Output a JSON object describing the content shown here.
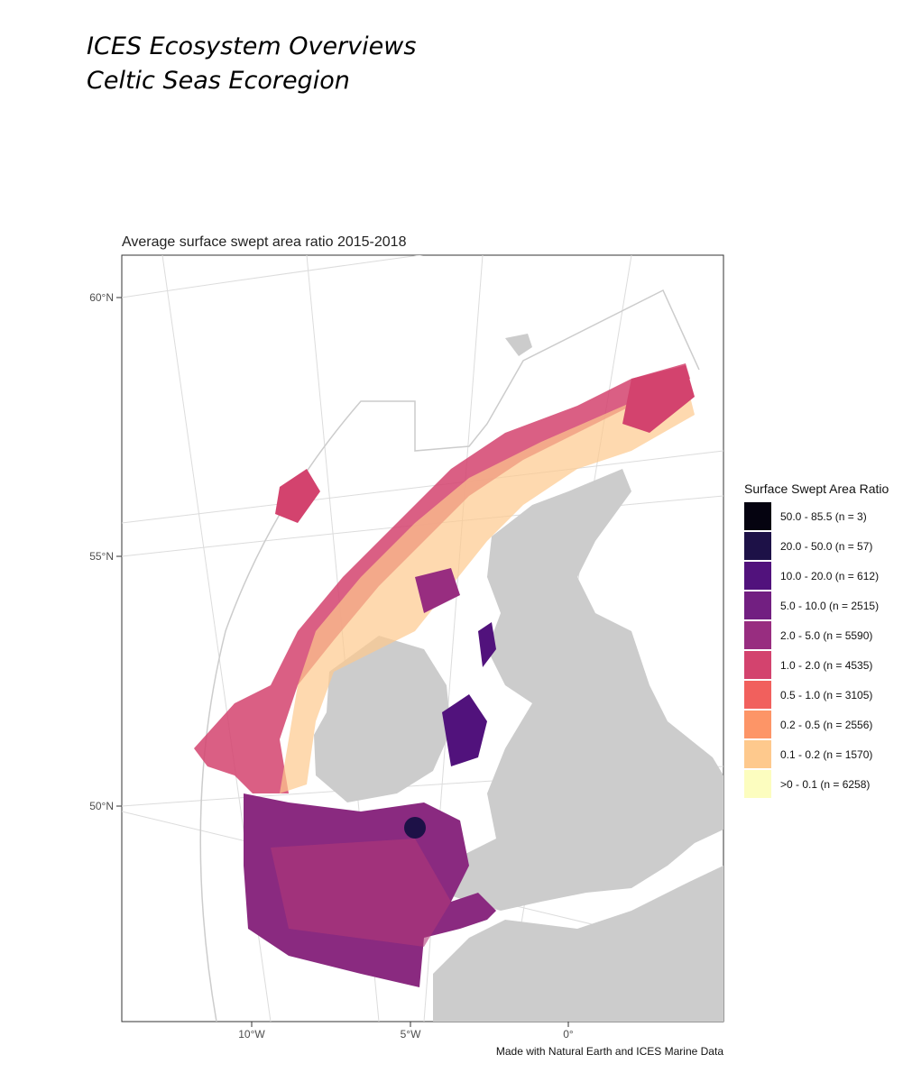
{
  "header": {
    "line1": "ICES Ecosystem Overviews",
    "line2": "Celtic Seas Ecoregion"
  },
  "map": {
    "title": "Average surface swept area ratio 2015-2018",
    "lat_labels": [
      "60°N",
      "55°N",
      "50°N"
    ],
    "lon_labels": [
      "10°W",
      "5°W",
      "0°"
    ],
    "credit": "Made with Natural Earth and ICES Marine Data"
  },
  "legend": {
    "title": "Surface Swept Area Ratio",
    "entries": [
      {
        "label": "50.0 - 85.5 (n = 3)",
        "color": "#050310"
      },
      {
        "label": "20.0 - 50.0 (n = 57)",
        "color": "#1d1147"
      },
      {
        "label": "10.0 - 20.0 (n = 612)",
        "color": "#51127c"
      },
      {
        "label": "5.0 - 10.0 (n = 2515)",
        "color": "#721f81"
      },
      {
        "label": "2.0 - 5.0 (n = 5590)",
        "color": "#982d80"
      },
      {
        "label": "1.0 - 2.0 (n = 4535)",
        "color": "#d3436e"
      },
      {
        "label": "0.5 - 1.0 (n = 3105)",
        "color": "#f1605d"
      },
      {
        "label": "0.2 - 0.5 (n = 2556)",
        "color": "#fd9567"
      },
      {
        "label": "0.1 - 0.2 (n = 1570)",
        "color": "#fec98d"
      },
      {
        "label": ">0 - 0.1 (n = 6258)",
        "color": "#fcfdbf"
      }
    ]
  }
}
